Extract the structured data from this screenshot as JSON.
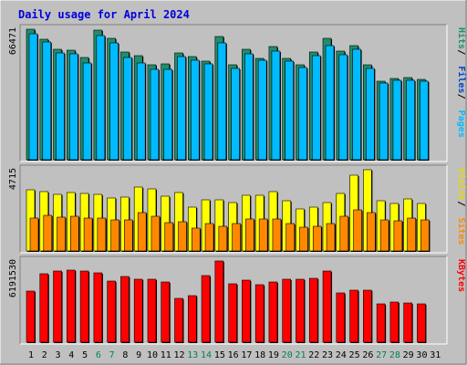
{
  "chart_data": {
    "type": "bar",
    "title": "Daily usage for April 2024",
    "days": [
      "1",
      "2",
      "3",
      "4",
      "5",
      "6",
      "7",
      "8",
      "9",
      "10",
      "11",
      "12",
      "13",
      "14",
      "15",
      "16",
      "17",
      "18",
      "19",
      "20",
      "21",
      "22",
      "23",
      "24",
      "25",
      "26",
      "27",
      "28",
      "29",
      "30",
      "31"
    ],
    "weekend_days": [
      "6",
      "7",
      "13",
      "14",
      "20",
      "21",
      "27",
      "28"
    ],
    "panels": [
      {
        "key": "hits",
        "max_label": "66471",
        "ymax": 66471,
        "series": [
          {
            "name": "Hits",
            "color": "#1e8f6e",
            "values": [
              66471,
              61500,
              56300,
              55700,
              52100,
              66000,
              61900,
              54800,
              53000,
              48500,
              48800,
              54400,
              52500,
              50100,
              62800,
              48300,
              56200,
              51700,
              57500,
              51500,
              48400,
              54800,
              61600,
              55100,
              58100,
              48300,
              40000,
              41600,
              41700,
              40900,
              0
            ]
          },
          {
            "name": "Files",
            "color": "#0044cc",
            "values": [
              64000,
              59800,
              54200,
              53900,
              49100,
              63000,
              59300,
              52100,
              49500,
              46200,
              46000,
              52500,
              50500,
              48800,
              59500,
              46400,
              54000,
              50500,
              55100,
              50200,
              46800,
              52900,
              58100,
              53600,
              56200,
              46500,
              39100,
              40600,
              40500,
              39800,
              0
            ]
          },
          {
            "name": "Pages",
            "color": "#00bbff",
            "values": [
              64000,
              59800,
              54200,
              53900,
              49100,
              63000,
              59300,
              52100,
              49500,
              46200,
              46000,
              52500,
              50500,
              48800,
              59500,
              46400,
              54000,
              50500,
              55100,
              50200,
              46800,
              52900,
              58100,
              53600,
              56200,
              46500,
              39100,
              40600,
              40500,
              39800,
              0
            ]
          }
        ],
        "legend": [
          "Pages",
          "Files",
          "Hits"
        ]
      },
      {
        "key": "visits",
        "max_label": "4715",
        "ymax": 4715,
        "series": [
          {
            "name": "Visits",
            "color": "#ffff00",
            "values": [
              3550,
              3450,
              3300,
              3400,
              3330,
              3300,
              3070,
              3130,
              3700,
              3580,
              3180,
              3400,
              2520,
              2980,
              2980,
              2820,
              3250,
              3230,
              3440,
              2900,
              2430,
              2520,
              2820,
              3360,
              4380,
              4715,
              2940,
              2760,
              3030,
              2760,
              0
            ]
          },
          {
            "name": "Sites",
            "color": "#ff8800",
            "values": [
              1900,
              2050,
              1980,
              2000,
              1930,
              1900,
              1780,
              1800,
              2220,
              2030,
              1620,
              1680,
              1350,
              1580,
              1420,
              1590,
              1870,
              1850,
              1850,
              1600,
              1370,
              1420,
              1600,
              1990,
              2380,
              2220,
              1790,
              1770,
              1910,
              1800,
              0
            ]
          }
        ],
        "legend": [
          "Sites",
          "Visits"
        ]
      },
      {
        "key": "kbytes",
        "max_label": "6191530",
        "ymax": 6191530,
        "series": [
          {
            "name": "KBytes",
            "color": "#ff0000",
            "values": [
              3890000,
              5230000,
              5410000,
              5500000,
              5430000,
              5300000,
              4660000,
              5000000,
              4820000,
              4800000,
              4590000,
              3310000,
              3550000,
              5080000,
              6191530,
              4420000,
              4710000,
              4400000,
              4590000,
              4800000,
              4770000,
              4840000,
              5430000,
              3760000,
              4000000,
              4000000,
              2950000,
              3070000,
              3000000,
              2930000,
              0
            ]
          }
        ],
        "legend": [
          "KBytes"
        ]
      }
    ]
  },
  "colors": {
    "background": "#c0c0c0",
    "title": "#0000dd",
    "weekday_label": "#000000",
    "weekend_label": "#00805a"
  }
}
